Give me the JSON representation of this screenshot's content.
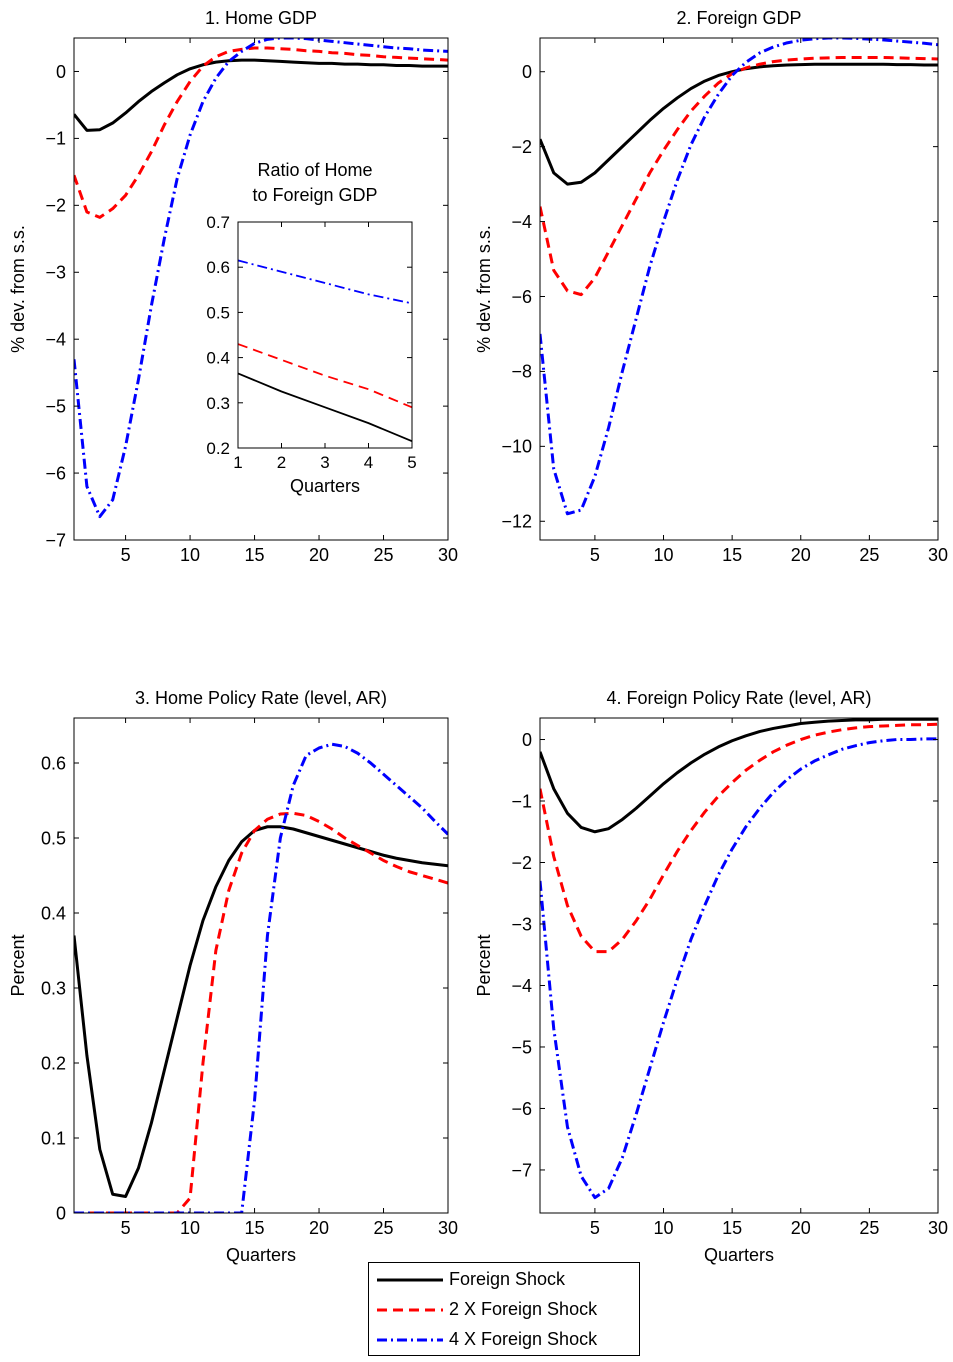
{
  "chart_data": [
    {
      "id": "p1",
      "type": "line",
      "title": "1. Home GDP",
      "xlabel": "",
      "ylabel": "% dev. from s.s.",
      "xlim": [
        1,
        30
      ],
      "ylim": [
        -7,
        0.5
      ],
      "xticks": [
        5,
        10,
        15,
        20,
        25,
        30
      ],
      "yticks": [
        -7,
        -6,
        -5,
        -4,
        -3,
        -2,
        -1,
        0
      ],
      "x": [
        1,
        2,
        3,
        4,
        5,
        6,
        7,
        8,
        9,
        10,
        11,
        12,
        13,
        14,
        15,
        16,
        17,
        18,
        19,
        20,
        21,
        22,
        23,
        24,
        25,
        26,
        27,
        28,
        29,
        30
      ],
      "series": [
        {
          "name": "Foreign Shock",
          "color": "#000000",
          "dash": "",
          "values": [
            -0.64,
            -0.88,
            -0.87,
            -0.77,
            -0.62,
            -0.45,
            -0.3,
            -0.17,
            -0.05,
            0.04,
            0.1,
            0.14,
            0.16,
            0.17,
            0.17,
            0.16,
            0.15,
            0.14,
            0.13,
            0.12,
            0.12,
            0.11,
            0.11,
            0.1,
            0.1,
            0.09,
            0.09,
            0.08,
            0.08,
            0.08
          ]
        },
        {
          "name": "2 X Foreign Shock",
          "color": "#ff0000",
          "dash": "10,6",
          "values": [
            -1.55,
            -2.1,
            -2.18,
            -2.05,
            -1.85,
            -1.55,
            -1.2,
            -0.8,
            -0.45,
            -0.15,
            0.08,
            0.22,
            0.3,
            0.33,
            0.35,
            0.35,
            0.34,
            0.33,
            0.31,
            0.3,
            0.28,
            0.27,
            0.25,
            0.24,
            0.22,
            0.21,
            0.2,
            0.19,
            0.18,
            0.17
          ]
        },
        {
          "name": "4 X Foreign Shock",
          "color": "#0000ff",
          "dash": "10,4,2,4",
          "values": [
            -4.3,
            -6.2,
            -6.65,
            -6.4,
            -5.6,
            -4.6,
            -3.5,
            -2.5,
            -1.6,
            -0.95,
            -0.45,
            -0.1,
            0.15,
            0.3,
            0.42,
            0.48,
            0.5,
            0.5,
            0.49,
            0.47,
            0.45,
            0.43,
            0.41,
            0.39,
            0.37,
            0.35,
            0.34,
            0.32,
            0.31,
            0.3
          ]
        }
      ],
      "inset": {
        "title": [
          "Ratio of Home",
          "to Foreign GDP"
        ],
        "xlabel": "Quarters",
        "xlim": [
          1,
          5
        ],
        "ylim": [
          0.2,
          0.7
        ],
        "xticks": [
          1,
          2,
          3,
          4,
          5
        ],
        "yticks": [
          0.2,
          0.3,
          0.4,
          0.5,
          0.6,
          0.7
        ],
        "x": [
          1,
          2,
          3,
          4,
          5
        ],
        "series": [
          {
            "name": "Foreign Shock",
            "color": "#000000",
            "dash": "",
            "values": [
              0.365,
              0.325,
              0.29,
              0.255,
              0.215
            ]
          },
          {
            "name": "2 X Foreign Shock",
            "color": "#ff0000",
            "dash": "10,6",
            "values": [
              0.43,
              0.395,
              0.36,
              0.33,
              0.29
            ]
          },
          {
            "name": "4 X Foreign Shock",
            "color": "#0000ff",
            "dash": "10,4,2,4",
            "values": [
              0.615,
              0.59,
              0.565,
              0.54,
              0.52
            ]
          }
        ]
      }
    },
    {
      "id": "p2",
      "type": "line",
      "title": "2. Foreign GDP",
      "xlabel": "",
      "ylabel": "% dev. from s.s.",
      "xlim": [
        1,
        30
      ],
      "ylim": [
        -12.5,
        0.9
      ],
      "xticks": [
        5,
        10,
        15,
        20,
        25,
        30
      ],
      "yticks": [
        -12,
        -10,
        -8,
        -6,
        -4,
        -2,
        0
      ],
      "x": [
        1,
        2,
        3,
        4,
        5,
        6,
        7,
        8,
        9,
        10,
        11,
        12,
        13,
        14,
        15,
        16,
        17,
        18,
        19,
        20,
        21,
        22,
        23,
        24,
        25,
        26,
        27,
        28,
        29,
        30
      ],
      "series": [
        {
          "name": "Foreign Shock",
          "color": "#000000",
          "dash": "",
          "values": [
            -1.8,
            -2.7,
            -3.0,
            -2.95,
            -2.7,
            -2.35,
            -2.0,
            -1.65,
            -1.3,
            -0.98,
            -0.7,
            -0.45,
            -0.25,
            -0.1,
            0.0,
            0.08,
            0.13,
            0.16,
            0.18,
            0.19,
            0.2,
            0.2,
            0.2,
            0.2,
            0.2,
            0.2,
            0.19,
            0.19,
            0.18,
            0.18
          ]
        },
        {
          "name": "2 X Foreign Shock",
          "color": "#ff0000",
          "dash": "10,6",
          "values": [
            -3.6,
            -5.3,
            -5.85,
            -5.95,
            -5.5,
            -4.8,
            -4.1,
            -3.4,
            -2.7,
            -2.1,
            -1.55,
            -1.05,
            -0.65,
            -0.3,
            -0.05,
            0.1,
            0.2,
            0.27,
            0.31,
            0.34,
            0.36,
            0.37,
            0.38,
            0.38,
            0.38,
            0.38,
            0.37,
            0.36,
            0.35,
            0.34
          ]
        },
        {
          "name": "4 X Foreign Shock",
          "color": "#0000ff",
          "dash": "10,4,2,4",
          "values": [
            -7.0,
            -10.6,
            -11.8,
            -11.7,
            -10.8,
            -9.5,
            -8.0,
            -6.6,
            -5.2,
            -4.0,
            -2.9,
            -1.95,
            -1.2,
            -0.6,
            -0.1,
            0.25,
            0.5,
            0.66,
            0.77,
            0.84,
            0.88,
            0.9,
            0.9,
            0.89,
            0.87,
            0.85,
            0.82,
            0.79,
            0.76,
            0.72
          ]
        }
      ]
    },
    {
      "id": "p3",
      "type": "line",
      "title": "3. Home Policy Rate (level, AR)",
      "xlabel": "Quarters",
      "ylabel": "Percent",
      "xlim": [
        1,
        30
      ],
      "ylim": [
        0,
        0.66
      ],
      "xticks": [
        5,
        10,
        15,
        20,
        25,
        30
      ],
      "yticks": [
        0,
        0.1,
        0.2,
        0.3,
        0.4,
        0.5,
        0.6
      ],
      "x": [
        1,
        2,
        3,
        4,
        5,
        6,
        7,
        8,
        9,
        10,
        11,
        12,
        13,
        14,
        15,
        16,
        17,
        18,
        19,
        20,
        21,
        22,
        23,
        24,
        25,
        26,
        27,
        28,
        29,
        30
      ],
      "series": [
        {
          "name": "Foreign Shock",
          "color": "#000000",
          "dash": "",
          "values": [
            0.37,
            0.21,
            0.085,
            0.025,
            0.022,
            0.06,
            0.12,
            0.19,
            0.26,
            0.33,
            0.39,
            0.435,
            0.47,
            0.495,
            0.51,
            0.515,
            0.515,
            0.512,
            0.507,
            0.502,
            0.497,
            0.492,
            0.487,
            0.482,
            0.477,
            0.473,
            0.47,
            0.467,
            0.465,
            0.463
          ]
        },
        {
          "name": "2 X Foreign Shock",
          "color": "#ff0000",
          "dash": "10,6",
          "values": [
            0,
            0,
            0,
            0,
            0,
            0,
            0,
            0,
            0,
            0.02,
            0.2,
            0.35,
            0.43,
            0.48,
            0.51,
            0.525,
            0.532,
            0.533,
            0.53,
            0.522,
            0.512,
            0.5,
            0.49,
            0.48,
            0.47,
            0.462,
            0.455,
            0.45,
            0.445,
            0.44
          ]
        },
        {
          "name": "4 X Foreign Shock",
          "color": "#0000ff",
          "dash": "10,4,2,4",
          "values": [
            0,
            0,
            0,
            0,
            0,
            0,
            0,
            0,
            0,
            0,
            0,
            0,
            0,
            0,
            0.15,
            0.37,
            0.5,
            0.57,
            0.61,
            0.62,
            0.625,
            0.622,
            0.613,
            0.6,
            0.585,
            0.57,
            0.555,
            0.54,
            0.522,
            0.505
          ]
        }
      ]
    },
    {
      "id": "p4",
      "type": "line",
      "title": "4. Foreign Policy Rate (level, AR)",
      "xlabel": "Quarters",
      "ylabel": "Percent",
      "xlim": [
        1,
        30
      ],
      "ylim": [
        -7.7,
        0.35
      ],
      "xticks": [
        5,
        10,
        15,
        20,
        25,
        30
      ],
      "yticks": [
        -7,
        -6,
        -5,
        -4,
        -3,
        -2,
        -1,
        0
      ],
      "x": [
        1,
        2,
        3,
        4,
        5,
        6,
        7,
        8,
        9,
        10,
        11,
        12,
        13,
        14,
        15,
        16,
        17,
        18,
        19,
        20,
        21,
        22,
        23,
        24,
        25,
        26,
        27,
        28,
        29,
        30
      ],
      "series": [
        {
          "name": "Foreign Shock",
          "color": "#000000",
          "dash": "",
          "values": [
            -0.2,
            -0.8,
            -1.2,
            -1.43,
            -1.5,
            -1.45,
            -1.3,
            -1.12,
            -0.92,
            -0.72,
            -0.54,
            -0.38,
            -0.24,
            -0.12,
            -0.02,
            0.06,
            0.13,
            0.18,
            0.22,
            0.26,
            0.28,
            0.3,
            0.31,
            0.32,
            0.32,
            0.33,
            0.33,
            0.33,
            0.33,
            0.33
          ]
        },
        {
          "name": "2 X Foreign Shock",
          "color": "#ff0000",
          "dash": "10,6",
          "values": [
            -0.8,
            -1.9,
            -2.7,
            -3.2,
            -3.45,
            -3.45,
            -3.25,
            -2.95,
            -2.6,
            -2.2,
            -1.82,
            -1.48,
            -1.18,
            -0.92,
            -0.7,
            -0.5,
            -0.34,
            -0.2,
            -0.09,
            0.0,
            0.07,
            0.12,
            0.16,
            0.19,
            0.21,
            0.22,
            0.23,
            0.24,
            0.24,
            0.25
          ]
        },
        {
          "name": "4 X Foreign Shock",
          "color": "#0000ff",
          "dash": "10,4,2,4",
          "values": [
            -2.3,
            -4.7,
            -6.3,
            -7.1,
            -7.45,
            -7.3,
            -6.8,
            -6.1,
            -5.35,
            -4.6,
            -3.9,
            -3.25,
            -2.7,
            -2.2,
            -1.78,
            -1.42,
            -1.12,
            -0.86,
            -0.65,
            -0.48,
            -0.35,
            -0.25,
            -0.16,
            -0.1,
            -0.05,
            -0.02,
            0.0,
            0.0,
            0.01,
            0.01
          ]
        }
      ]
    }
  ],
  "legend": {
    "items": [
      {
        "label": "Foreign Shock",
        "color": "#000000",
        "dash": ""
      },
      {
        "label": "2 X Foreign Shock",
        "color": "#ff0000",
        "dash": "10,6"
      },
      {
        "label": "4 X Foreign Shock",
        "color": "#0000ff",
        "dash": "10,4,2,4"
      }
    ]
  }
}
